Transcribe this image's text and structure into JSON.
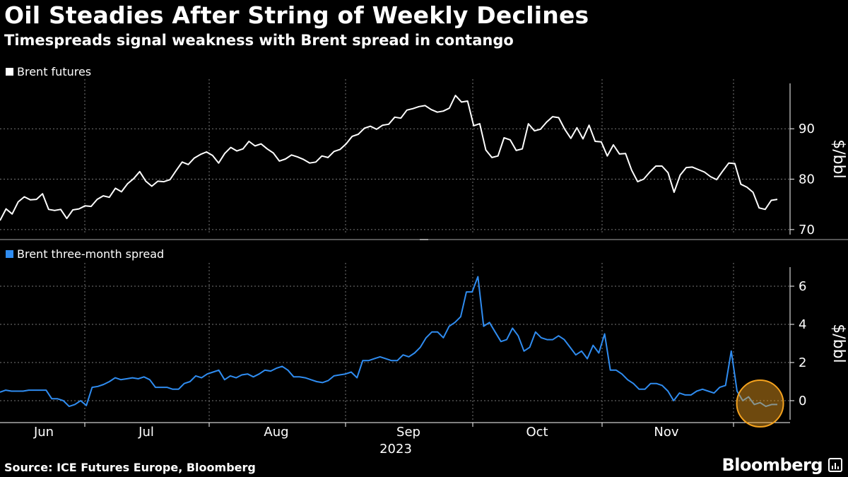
{
  "title": "Oil Steadies After String of Weekly Declines",
  "subtitle": "Timespreads signal weakness with Brent spread in contango",
  "source": "Source: ICE Futures Europe, Bloomberg",
  "brand": "Bloomberg",
  "colors": {
    "background": "#000000",
    "brent_line": "#ffffff",
    "spread_line": "#2f8cf0",
    "highlight": "#f4a21e"
  },
  "chart_data": [
    {
      "type": "line",
      "legend": "Brent futures",
      "ylabel": "$/bbl",
      "ylim": [
        69,
        99
      ],
      "yticks": [
        70,
        80,
        90
      ],
      "values": [
        71.8,
        74.1,
        73.1,
        75.5,
        76.5,
        75.9,
        76.0,
        77.1,
        74.0,
        73.8,
        74.0,
        72.2,
        73.9,
        74.1,
        74.7,
        74.6,
        76.0,
        76.7,
        76.4,
        78.2,
        77.5,
        79.1,
        80.1,
        81.5,
        79.6,
        78.6,
        79.6,
        79.5,
        79.9,
        81.7,
        83.4,
        82.9,
        84.2,
        84.9,
        85.4,
        84.7,
        83.2,
        85.1,
        86.3,
        85.6,
        86.0,
        87.5,
        86.6,
        87.0,
        86.0,
        85.2,
        83.6,
        84.0,
        84.8,
        84.4,
        83.9,
        83.2,
        83.4,
        84.6,
        84.3,
        85.5,
        85.9,
        87.0,
        88.5,
        88.9,
        90.1,
        90.5,
        89.9,
        90.7,
        90.9,
        92.3,
        92.1,
        93.7,
        94.0,
        94.4,
        94.6,
        93.8,
        93.3,
        93.5,
        94.1,
        96.6,
        95.3,
        95.5,
        90.6,
        91.0,
        85.8,
        84.3,
        84.6,
        88.2,
        87.8,
        85.7,
        86.0,
        91.0,
        89.6,
        89.9,
        91.3,
        92.4,
        92.2,
        89.9,
        88.1,
        90.2,
        88.0,
        90.7,
        87.5,
        87.4,
        84.6,
        86.8,
        85.0,
        85.1,
        81.8,
        79.5,
        80.0,
        81.4,
        82.6,
        82.6,
        81.3,
        77.4,
        80.8,
        82.3,
        82.4,
        81.9,
        81.4,
        80.5,
        79.9,
        81.6,
        83.2,
        83.1,
        79.0,
        78.4,
        77.4,
        74.3,
        74.0,
        75.8,
        76.0
      ]
    },
    {
      "type": "line",
      "legend": "Brent three-month spread",
      "ylabel": "$/bbl",
      "ylim": [
        -1,
        7
      ],
      "yticks": [
        0,
        2,
        4,
        6
      ],
      "x_labels": [
        "Jun",
        "Jul",
        "Aug",
        "Sep",
        "Oct",
        "Nov"
      ],
      "x_year": "2023",
      "values": [
        0.45,
        0.55,
        0.5,
        0.5,
        0.5,
        0.55,
        0.55,
        0.55,
        0.55,
        0.1,
        0.1,
        0.0,
        -0.3,
        -0.2,
        0.0,
        -0.25,
        0.7,
        0.75,
        0.85,
        1.0,
        1.2,
        1.1,
        1.15,
        1.2,
        1.15,
        1.25,
        1.1,
        0.7,
        0.7,
        0.7,
        0.6,
        0.6,
        0.9,
        1.0,
        1.3,
        1.2,
        1.4,
        1.5,
        1.6,
        1.1,
        1.3,
        1.2,
        1.35,
        1.4,
        1.25,
        1.4,
        1.6,
        1.55,
        1.7,
        1.8,
        1.6,
        1.25,
        1.25,
        1.2,
        1.1,
        1.0,
        0.95,
        1.05,
        1.3,
        1.35,
        1.4,
        1.5,
        1.2,
        2.1,
        2.1,
        2.2,
        2.3,
        2.2,
        2.1,
        2.1,
        2.4,
        2.3,
        2.5,
        2.8,
        3.3,
        3.6,
        3.6,
        3.3,
        3.9,
        4.1,
        4.4,
        5.7,
        5.7,
        6.5,
        3.9,
        4.1,
        3.6,
        3.1,
        3.2,
        3.8,
        3.4,
        2.6,
        2.8,
        3.6,
        3.3,
        3.2,
        3.2,
        3.4,
        3.2,
        2.8,
        2.4,
        2.6,
        2.2,
        2.9,
        2.5,
        3.5,
        1.6,
        1.6,
        1.4,
        1.1,
        0.9,
        0.6,
        0.6,
        0.9,
        0.9,
        0.8,
        0.5,
        0.0,
        0.4,
        0.3,
        0.3,
        0.5,
        0.6,
        0.5,
        0.4,
        0.7,
        0.8,
        2.6,
        0.5,
        0.0,
        0.2,
        -0.2,
        -0.1,
        -0.3,
        -0.2,
        -0.2
      ]
    }
  ]
}
